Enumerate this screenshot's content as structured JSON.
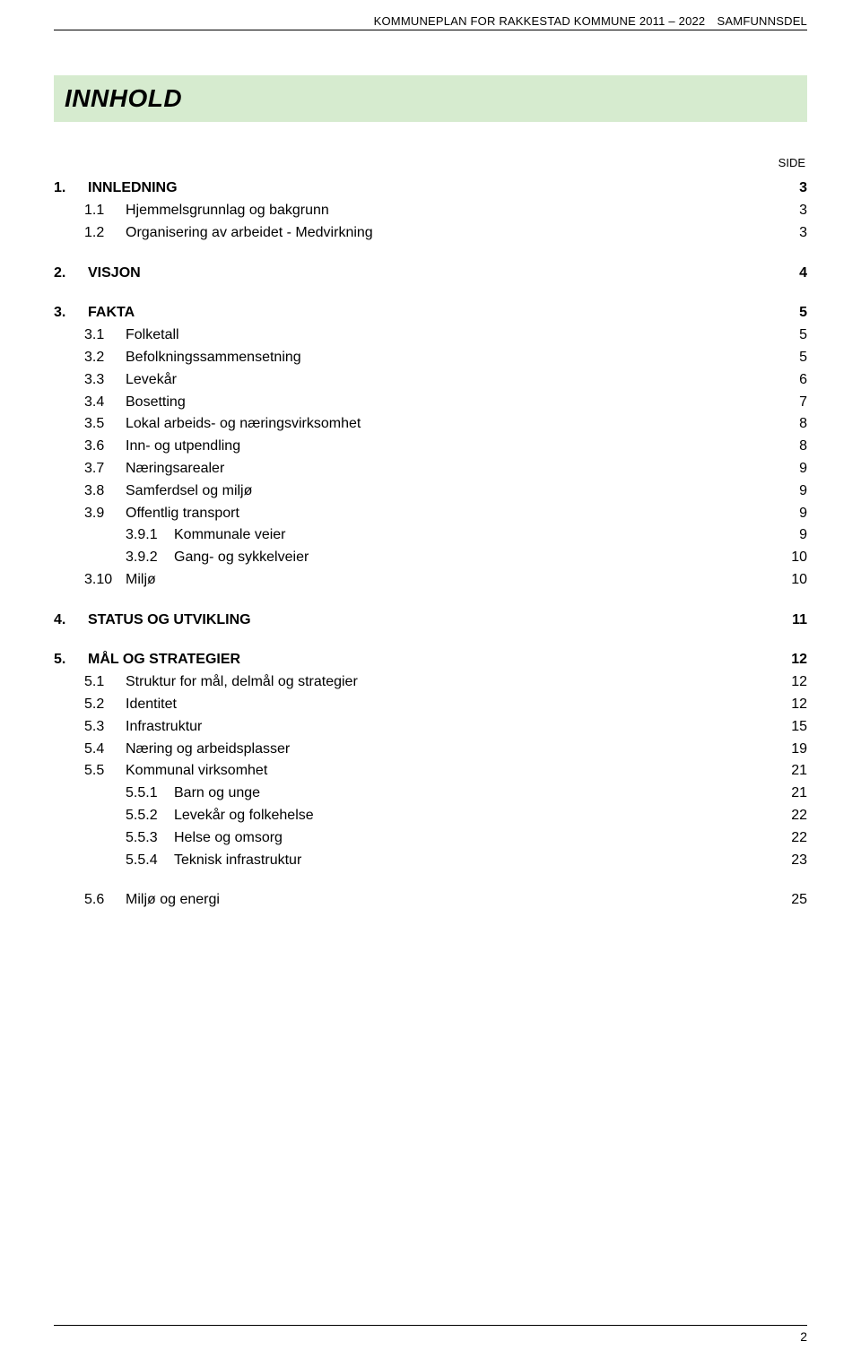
{
  "header": {
    "text": "KOMMUNEPLAN FOR RAKKESTAD KOMMUNE 2011 – 2022 SAMFUNNSDEL"
  },
  "title": "INNHOLD",
  "side_label": "SIDE",
  "toc": [
    {
      "level": 0,
      "num": "1.",
      "label": "INNLEDNING",
      "page": "3"
    },
    {
      "level": 1,
      "num": "1.1",
      "label": "Hjemmelsgrunnlag og bakgrunn",
      "page": "3"
    },
    {
      "level": 1,
      "num": "1.2",
      "label": "Organisering av arbeidet  -  Medvirkning",
      "page": "3",
      "gap_after": true
    },
    {
      "level": 0,
      "num": "2.",
      "label": "VISJON",
      "page": "4"
    },
    {
      "level": 0,
      "num": "3.",
      "label": "FAKTA",
      "page": "5"
    },
    {
      "level": 1,
      "num": "3.1",
      "label": "Folketall",
      "page": "5"
    },
    {
      "level": 1,
      "num": "3.2",
      "label": "Befolkningssammensetning",
      "page": "5"
    },
    {
      "level": 1,
      "num": "3.3",
      "label": "Levekår",
      "page": "6"
    },
    {
      "level": 1,
      "num": "3.4",
      "label": "Bosetting",
      "page": "7"
    },
    {
      "level": 1,
      "num": "3.5",
      "label": "Lokal arbeids- og næringsvirksomhet",
      "page": "8"
    },
    {
      "level": 1,
      "num": "3.6",
      "label": "Inn- og utpendling",
      "page": "8"
    },
    {
      "level": 1,
      "num": "3.7",
      "label": "Næringsarealer",
      "page": "9"
    },
    {
      "level": 1,
      "num": "3.8",
      "label": "Samferdsel og miljø",
      "page": "9"
    },
    {
      "level": 1,
      "num": "3.9",
      "label": "Offentlig transport",
      "page": "9"
    },
    {
      "level": 2,
      "num": "3.9.1",
      "label": "Kommunale veier",
      "page": "9"
    },
    {
      "level": 2,
      "num": "3.9.2",
      "label": "Gang- og sykkelveier",
      "page": "10"
    },
    {
      "level": 1,
      "num": "3.10",
      "label": "Miljø",
      "page": "10",
      "gap_after": true
    },
    {
      "level": 0,
      "num": "4.",
      "label": "STATUS OG UTVIKLING",
      "page": "11"
    },
    {
      "level": 0,
      "num": "5.",
      "label": "MÅL OG STRATEGIER",
      "page": "12"
    },
    {
      "level": 1,
      "num": "5.1",
      "label": "Struktur for mål, delmål og strategier",
      "page": "12"
    },
    {
      "level": 1,
      "num": "5.2",
      "label": "Identitet",
      "page": "12"
    },
    {
      "level": 1,
      "num": "5.3",
      "label": "Infrastruktur",
      "page": "15"
    },
    {
      "level": 1,
      "num": "5.4",
      "label": "Næring og arbeidsplasser",
      "page": "19"
    },
    {
      "level": 1,
      "num": "5.5",
      "label": "Kommunal virksomhet",
      "page": "21"
    },
    {
      "level": 2,
      "num": "5.5.1",
      "label": "Barn og unge",
      "page": "21"
    },
    {
      "level": 2,
      "num": "5.5.2",
      "label": "Levekår og folkehelse",
      "page": "22"
    },
    {
      "level": 2,
      "num": "5.5.3",
      "label": "Helse og omsorg",
      "page": "22"
    },
    {
      "level": 2,
      "num": "5.5.4",
      "label": "Teknisk infrastruktur",
      "page": "23",
      "gap_after": true
    },
    {
      "level": 1,
      "num": "5.6",
      "label": "Miljø og energi",
      "page": "25"
    }
  ],
  "footer": {
    "page_number": "2"
  },
  "colors": {
    "title_band_bg": "#d6ebcf",
    "page_bg": "#ffffff",
    "rule": "#000000",
    "text": "#000000"
  }
}
